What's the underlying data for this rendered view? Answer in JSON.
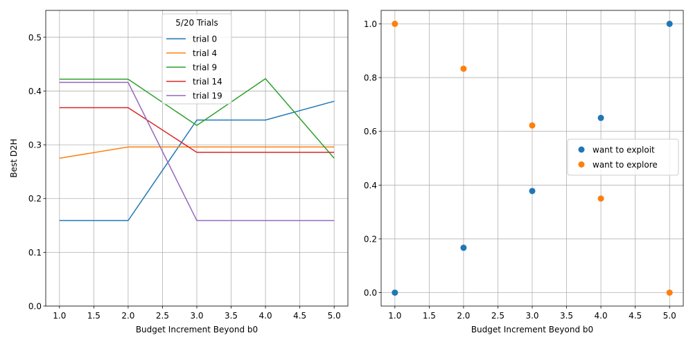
{
  "chart_data": [
    {
      "type": "line",
      "title": "",
      "xlabel": "Budget Increment Beyond b0",
      "ylabel": "Best D2H",
      "xlim": [
        0.8,
        5.2
      ],
      "ylim": [
        0.0,
        0.55
      ],
      "xticks": [
        1.0,
        1.5,
        2.0,
        2.5,
        3.0,
        3.5,
        4.0,
        4.5,
        5.0
      ],
      "xtick_labels": [
        "1.0",
        "1.5",
        "2.0",
        "2.5",
        "3.0",
        "3.5",
        "4.0",
        "4.5",
        "5.0"
      ],
      "yticks": [
        0.0,
        0.1,
        0.2,
        0.3,
        0.4,
        0.5
      ],
      "ytick_labels": [
        "0.0",
        "0.1",
        "0.2",
        "0.3",
        "0.4",
        "0.5"
      ],
      "grid": true,
      "legend": {
        "title": "5/20 Trials",
        "position": "top-center"
      },
      "x": [
        1,
        2,
        3,
        4,
        5
      ],
      "series": [
        {
          "name": "trial 0",
          "color": "#1f77b4",
          "values": [
            0.159,
            0.159,
            0.346,
            0.346,
            0.381
          ]
        },
        {
          "name": "trial 4",
          "color": "#ff7f0e",
          "values": [
            0.275,
            0.296,
            0.296,
            0.296,
            0.296
          ]
        },
        {
          "name": "trial 9",
          "color": "#2ca02c",
          "values": [
            0.422,
            0.422,
            0.336,
            0.423,
            0.275
          ]
        },
        {
          "name": "trial 14",
          "color": "#d62728",
          "values": [
            0.369,
            0.369,
            0.286,
            0.286,
            0.286
          ]
        },
        {
          "name": "trial 19",
          "color": "#9467bd",
          "values": [
            0.416,
            0.416,
            0.159,
            0.159,
            0.159
          ]
        }
      ]
    },
    {
      "type": "scatter",
      "title": "",
      "xlabel": "Budget Increment Beyond b0",
      "ylabel": "",
      "xlim": [
        0.8,
        5.2
      ],
      "ylim": [
        -0.05,
        1.05
      ],
      "xticks": [
        1.0,
        1.5,
        2.0,
        2.5,
        3.0,
        3.5,
        4.0,
        4.5,
        5.0
      ],
      "xtick_labels": [
        "1.0",
        "1.5",
        "2.0",
        "2.5",
        "3.0",
        "3.5",
        "4.0",
        "4.5",
        "5.0"
      ],
      "yticks": [
        0.0,
        0.2,
        0.4,
        0.6,
        0.8,
        1.0
      ],
      "ytick_labels": [
        "0.0",
        "0.2",
        "0.4",
        "0.6",
        "0.8",
        "1.0"
      ],
      "grid": true,
      "legend": {
        "position": "center-right"
      },
      "x": [
        1,
        2,
        3,
        4,
        5
      ],
      "series": [
        {
          "name": "want to exploit",
          "color": "#1f77b4",
          "values": [
            0.0,
            0.167,
            0.378,
            0.65,
            1.0
          ]
        },
        {
          "name": "want to explore",
          "color": "#ff7f0e",
          "values": [
            1.0,
            0.833,
            0.622,
            0.35,
            0.0
          ]
        }
      ]
    }
  ]
}
